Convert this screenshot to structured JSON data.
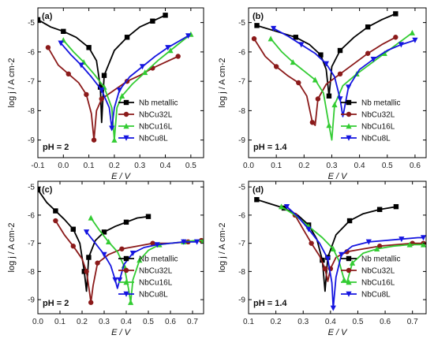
{
  "chart_data": [
    {
      "type": "line",
      "panel_label": "(a)",
      "annotation": "pH = 2",
      "xlabel": "E / V",
      "ylabel": "log j / A cm-2",
      "xlim": [
        -0.1,
        0.55
      ],
      "ylim": [
        -9.6,
        -4.5
      ],
      "xticks": [
        "-0.1",
        "0.0",
        "0.1",
        "0.2",
        "0.3",
        "0.4",
        "0.5"
      ],
      "yticks": [
        "-5",
        "-6",
        "-7",
        "-8",
        "-9"
      ],
      "legend_position": "lower-right",
      "series": [
        {
          "name": "Nb metallic",
          "color": "#000000",
          "marker": "square",
          "x": [
            -0.1,
            -0.05,
            0.0,
            0.05,
            0.1,
            0.13,
            0.145,
            0.15,
            0.16,
            0.2,
            0.25,
            0.3,
            0.35,
            0.4
          ],
          "y": [
            -4.9,
            -5.15,
            -5.3,
            -5.5,
            -5.85,
            -6.3,
            -7.2,
            -8.4,
            -6.8,
            -5.95,
            -5.5,
            -5.15,
            -4.95,
            -4.75
          ]
        },
        {
          "name": "NbCu32L",
          "color": "#8b1a1a",
          "marker": "circle",
          "x": [
            -0.06,
            -0.02,
            0.02,
            0.06,
            0.09,
            0.11,
            0.12,
            0.13,
            0.15,
            0.2,
            0.25,
            0.3,
            0.35,
            0.4,
            0.45
          ],
          "y": [
            -5.85,
            -6.45,
            -6.75,
            -7.05,
            -7.45,
            -8.1,
            -9.0,
            -8.0,
            -7.6,
            -7.3,
            -7.0,
            -6.8,
            -6.55,
            -6.35,
            -6.15
          ]
        },
        {
          "name": "NbCu16L",
          "color": "#33cc33",
          "marker": "triangle-up",
          "x": [
            0.0,
            0.04,
            0.08,
            0.12,
            0.16,
            0.19,
            0.2,
            0.21,
            0.23,
            0.27,
            0.32,
            0.37,
            0.42,
            0.47,
            0.5
          ],
          "y": [
            -5.6,
            -6.0,
            -6.35,
            -6.75,
            -7.2,
            -7.9,
            -9.0,
            -7.9,
            -7.5,
            -7.1,
            -6.7,
            -6.3,
            -5.95,
            -5.6,
            -5.4
          ]
        },
        {
          "name": "NbCu8L",
          "color": "#1515e0",
          "marker": "triangle-down",
          "x": [
            -0.01,
            0.03,
            0.07,
            0.11,
            0.15,
            0.18,
            0.19,
            0.2,
            0.22,
            0.26,
            0.31,
            0.36,
            0.41,
            0.46,
            0.49
          ],
          "y": [
            -5.7,
            -6.1,
            -6.45,
            -6.85,
            -7.3,
            -7.9,
            -8.6,
            -7.9,
            -7.3,
            -6.85,
            -6.5,
            -6.15,
            -5.85,
            -5.6,
            -5.45
          ]
        }
      ]
    },
    {
      "type": "line",
      "panel_label": "(b)",
      "annotation": "pH = 1.4",
      "xlabel": "E / V",
      "ylabel": "log j / A cm-2",
      "xlim": [
        0.0,
        0.64
      ],
      "ylim": [
        -9.6,
        -4.5
      ],
      "xticks": [
        "0.0",
        "0.1",
        "0.2",
        "0.3",
        "0.4",
        "0.5",
        "0.6"
      ],
      "yticks": [
        "-5",
        "-6",
        "-7",
        "-8",
        "-9"
      ],
      "legend_position": "lower-right",
      "series": [
        {
          "name": "Nb metallic",
          "color": "#000000",
          "marker": "square",
          "x": [
            0.03,
            0.1,
            0.17,
            0.22,
            0.26,
            0.28,
            0.29,
            0.3,
            0.33,
            0.38,
            0.43,
            0.48,
            0.53
          ],
          "y": [
            -5.1,
            -5.3,
            -5.5,
            -5.75,
            -6.1,
            -6.6,
            -7.5,
            -6.5,
            -5.95,
            -5.5,
            -5.15,
            -4.9,
            -4.7
          ]
        },
        {
          "name": "NbCu32L",
          "color": "#8b1a1a",
          "marker": "circle",
          "x": [
            0.02,
            0.06,
            0.1,
            0.14,
            0.18,
            0.21,
            0.23,
            0.24,
            0.25,
            0.28,
            0.33,
            0.38,
            0.43,
            0.48,
            0.53
          ],
          "y": [
            -5.55,
            -6.15,
            -6.5,
            -6.8,
            -7.05,
            -7.5,
            -8.4,
            -8.5,
            -7.6,
            -7.1,
            -6.75,
            -6.4,
            -6.05,
            -5.75,
            -5.5
          ]
        },
        {
          "name": "NbCu16L",
          "color": "#33cc33",
          "marker": "triangle-up",
          "x": [
            0.08,
            0.12,
            0.16,
            0.2,
            0.24,
            0.27,
            0.29,
            0.3,
            0.31,
            0.34,
            0.39,
            0.44,
            0.49,
            0.54,
            0.59
          ],
          "y": [
            -5.55,
            -6.0,
            -6.35,
            -6.65,
            -6.95,
            -7.4,
            -8.5,
            -9.0,
            -7.8,
            -7.15,
            -6.75,
            -6.4,
            -6.05,
            -5.7,
            -5.35
          ]
        },
        {
          "name": "NbCu8L",
          "color": "#1515e0",
          "marker": "triangle-down",
          "x": [
            0.09,
            0.14,
            0.19,
            0.24,
            0.28,
            0.31,
            0.33,
            0.34,
            0.36,
            0.4,
            0.45,
            0.5,
            0.55,
            0.6
          ],
          "y": [
            -5.2,
            -5.45,
            -5.75,
            -6.05,
            -6.4,
            -6.85,
            -7.6,
            -8.2,
            -7.2,
            -6.6,
            -6.25,
            -5.95,
            -5.75,
            -5.6
          ]
        }
      ]
    },
    {
      "type": "line",
      "panel_label": "(c)",
      "annotation": "pH = 2",
      "xlabel": "E / V",
      "ylabel": "log j / A cm-2",
      "xlim": [
        0.0,
        0.75
      ],
      "ylim": [
        -9.5,
        -4.8
      ],
      "xticks": [
        "0.0",
        "0.1",
        "0.2",
        "0.3",
        "0.4",
        "0.5",
        "0.6",
        "0.7"
      ],
      "yticks": [
        "-5",
        "-6",
        "-7",
        "-8",
        "-9"
      ],
      "legend_position": "lower-right",
      "series": [
        {
          "name": "Nb metallic",
          "color": "#000000",
          "marker": "square",
          "x": [
            0.0,
            0.04,
            0.08,
            0.12,
            0.16,
            0.19,
            0.21,
            0.22,
            0.23,
            0.26,
            0.3,
            0.35,
            0.4,
            0.45,
            0.5
          ],
          "y": [
            -5.1,
            -5.55,
            -5.85,
            -6.15,
            -6.5,
            -7.0,
            -8.0,
            -8.7,
            -7.5,
            -6.9,
            -6.6,
            -6.4,
            -6.25,
            -6.1,
            -6.05
          ]
        },
        {
          "name": "NbCu32L",
          "color": "#8b1a1a",
          "marker": "circle",
          "x": [
            0.08,
            0.12,
            0.16,
            0.2,
            0.22,
            0.235,
            0.24,
            0.25,
            0.27,
            0.32,
            0.38,
            0.45,
            0.52,
            0.6,
            0.68,
            0.74
          ],
          "y": [
            -6.2,
            -6.7,
            -7.1,
            -7.55,
            -8.0,
            -8.8,
            -9.1,
            -8.5,
            -7.7,
            -7.4,
            -7.2,
            -7.1,
            -7.0,
            -7.0,
            -6.95,
            -6.9
          ]
        },
        {
          "name": "NbCu16L",
          "color": "#33cc33",
          "marker": "triangle-up",
          "x": [
            0.24,
            0.28,
            0.32,
            0.36,
            0.39,
            0.41,
            0.42,
            0.43,
            0.46,
            0.5,
            0.55,
            0.6,
            0.66,
            0.71,
            0.75
          ],
          "y": [
            -6.1,
            -6.55,
            -6.95,
            -7.3,
            -7.8,
            -8.6,
            -9.1,
            -8.3,
            -7.6,
            -7.25,
            -7.05,
            -7.0,
            -6.95,
            -6.9,
            -6.9
          ]
        },
        {
          "name": "NbCu8L",
          "color": "#1515e0",
          "marker": "triangle-down",
          "x": [
            0.22,
            0.26,
            0.3,
            0.33,
            0.35,
            0.36,
            0.37,
            0.39,
            0.43,
            0.48,
            0.54,
            0.6,
            0.66,
            0.72
          ],
          "y": [
            -6.6,
            -7.0,
            -7.4,
            -7.8,
            -8.3,
            -8.6,
            -8.3,
            -7.75,
            -7.35,
            -7.15,
            -7.05,
            -7.0,
            -6.95,
            -6.95
          ]
        }
      ]
    },
    {
      "type": "line",
      "panel_label": "(d)",
      "annotation": "pH = 1.4",
      "xlabel": "E / V",
      "ylabel": "log j / A cm-2",
      "xlim": [
        0.1,
        0.75
      ],
      "ylim": [
        -9.5,
        -4.8
      ],
      "xticks": [
        "0.1",
        "0.2",
        "0.3",
        "0.4",
        "0.5",
        "0.6",
        "0.7"
      ],
      "yticks": [
        "-5",
        "-6",
        "-7",
        "-8",
        "-9"
      ],
      "legend_position": "lower-right",
      "series": [
        {
          "name": "Nb metallic",
          "color": "#000000",
          "marker": "square",
          "x": [
            0.13,
            0.18,
            0.23,
            0.28,
            0.32,
            0.35,
            0.37,
            0.38,
            0.39,
            0.42,
            0.47,
            0.52,
            0.58,
            0.64
          ],
          "y": [
            -5.45,
            -5.6,
            -5.75,
            -6.0,
            -6.35,
            -6.85,
            -7.6,
            -8.7,
            -7.5,
            -6.7,
            -6.2,
            -5.95,
            -5.8,
            -5.7
          ]
        },
        {
          "name": "NbCu32L",
          "color": "#8b1a1a",
          "marker": "circle",
          "x": [
            0.27,
            0.3,
            0.33,
            0.36,
            0.38,
            0.39,
            0.4,
            0.42,
            0.46,
            0.52,
            0.58,
            0.64,
            0.7,
            0.74
          ],
          "y": [
            -6.0,
            -6.5,
            -7.0,
            -7.45,
            -7.9,
            -8.35,
            -7.9,
            -7.5,
            -7.3,
            -7.2,
            -7.1,
            -7.05,
            -7.0,
            -7.0
          ]
        },
        {
          "name": "NbCu16L",
          "color": "#33cc33",
          "marker": "triangle-up",
          "x": [
            0.22,
            0.27,
            0.32,
            0.37,
            0.41,
            0.43,
            0.45,
            0.46,
            0.48,
            0.52,
            0.57,
            0.63,
            0.69,
            0.74
          ],
          "y": [
            -5.7,
            -6.0,
            -6.4,
            -6.8,
            -7.2,
            -7.6,
            -8.3,
            -8.4,
            -7.7,
            -7.35,
            -7.2,
            -7.1,
            -7.05,
            -7.05
          ]
        },
        {
          "name": "NbCu8L",
          "color": "#1515e0",
          "marker": "triangle-down",
          "x": [
            0.24,
            0.28,
            0.32,
            0.36,
            0.39,
            0.405,
            0.41,
            0.42,
            0.44,
            0.48,
            0.54,
            0.6,
            0.66,
            0.72,
            0.74
          ],
          "y": [
            -5.7,
            -6.05,
            -6.5,
            -7.0,
            -7.55,
            -8.4,
            -9.3,
            -8.2,
            -7.4,
            -7.1,
            -6.95,
            -6.9,
            -6.85,
            -6.8,
            -6.8
          ]
        }
      ]
    }
  ]
}
